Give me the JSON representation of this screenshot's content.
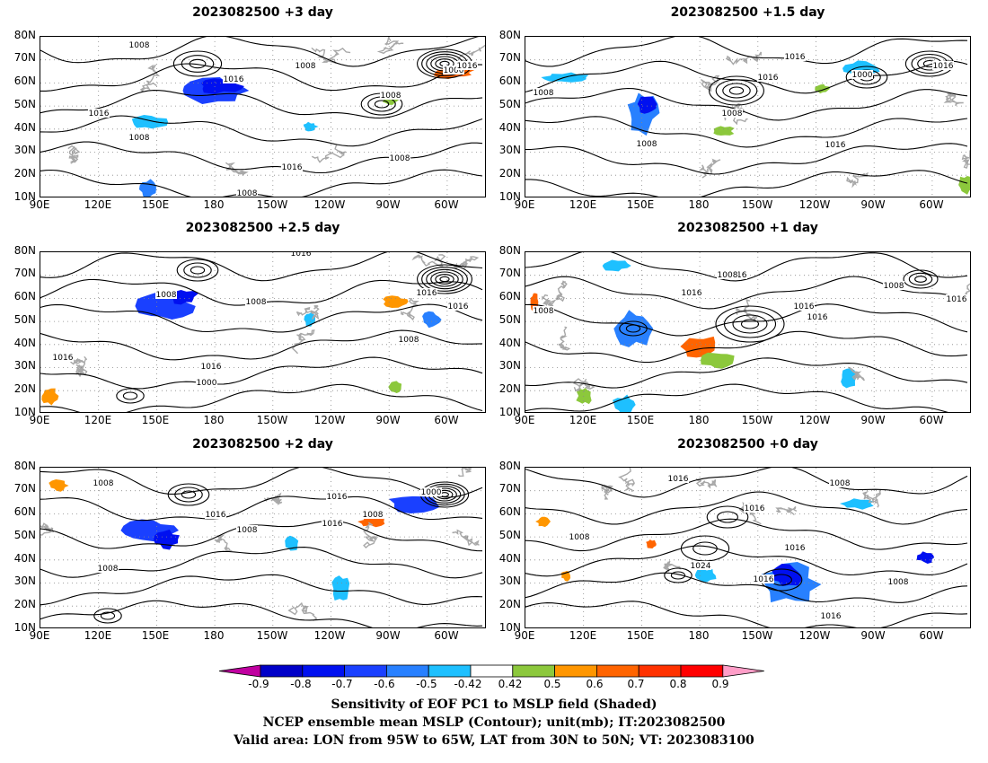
{
  "panels": [
    {
      "title": "2023082500 +3 day",
      "contour_labels": [
        "1008",
        "1008",
        "1016",
        "1016",
        "1008",
        "1016",
        "1000",
        "1016",
        "1008",
        "1008",
        "1008"
      ]
    },
    {
      "title": "2023082500 +1.5 day",
      "contour_labels": [
        "1008",
        "1016",
        "1016",
        "1008",
        "1008",
        "1016",
        "1000",
        "1016"
      ]
    },
    {
      "title": "2023082500 +2.5 day",
      "contour_labels": [
        "1016",
        "1008",
        "1008",
        "1016",
        "1016",
        "1000",
        "1016",
        "1016",
        "1008"
      ]
    },
    {
      "title": "2023082500 +1 day",
      "contour_labels": [
        "1008",
        "1016",
        "1016",
        "1008",
        "1016",
        "1016",
        "1008",
        "1016"
      ]
    },
    {
      "title": "2023082500 +2 day",
      "contour_labels": [
        "1008",
        "1016",
        "1016",
        "1008",
        "1016",
        "1008",
        "1000",
        "1008"
      ]
    },
    {
      "title": "2023082500 +0 day",
      "contour_labels": [
        "1016",
        "1008",
        "1016",
        "1008",
        "1016",
        "1024",
        "1016",
        "1008",
        "1016"
      ]
    }
  ],
  "axes": {
    "y_ticks": [
      "80N",
      "70N",
      "60N",
      "50N",
      "40N",
      "30N",
      "20N",
      "10N"
    ],
    "x_ticks": [
      "90E",
      "120E",
      "150E",
      "180",
      "150W",
      "120W",
      "90W",
      "60W"
    ]
  },
  "colorbar": {
    "labels": [
      "-0.9",
      "-0.8",
      "-0.7",
      "-0.6",
      "-0.5",
      "-0.42",
      "0.42",
      "0.5",
      "0.6",
      "0.7",
      "0.8",
      "0.9"
    ],
    "colors": [
      "#c000a0",
      "#0000c8",
      "#0010f0",
      "#1a40ff",
      "#2880ff",
      "#1ec0ff",
      "#ffffff",
      "#8cc83c",
      "#ff9600",
      "#ff6400",
      "#ff3200",
      "#ff0000",
      "#ff9ec8"
    ]
  },
  "captions": [
    "Sensitivity of EOF PC1 to MSLP field (Shaded)",
    "NCEP ensemble mean MSLP (Contour); unit(mb); IT:2023082500",
    "Valid area: LON from 95W to 65W, LAT from 30N to 50N; VT: 2023083100"
  ]
}
